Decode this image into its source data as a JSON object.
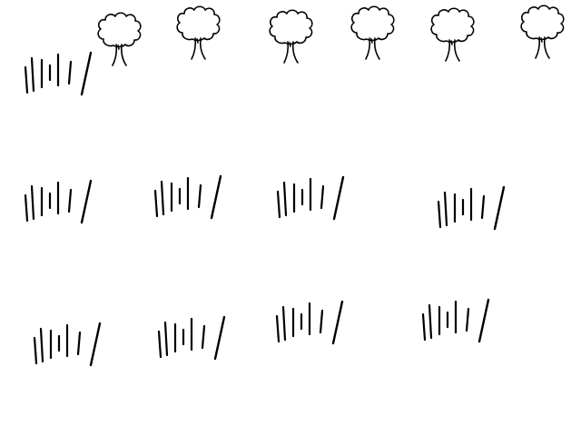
{
  "scene": {
    "background": "#ffffff",
    "ink_color": "#000000",
    "trees": [
      {
        "icon": "tree-icon"
      },
      {
        "icon": "tree-icon"
      },
      {
        "icon": "tree-icon"
      },
      {
        "icon": "tree-icon"
      },
      {
        "icon": "tree-icon"
      },
      {
        "icon": "tree-icon"
      }
    ],
    "grass_tufts": [
      {
        "icon": "grass-tuft-icon"
      },
      {
        "icon": "grass-tuft-icon"
      },
      {
        "icon": "grass-tuft-icon"
      },
      {
        "icon": "grass-tuft-icon"
      },
      {
        "icon": "grass-tuft-icon"
      },
      {
        "icon": "grass-tuft-icon"
      },
      {
        "icon": "grass-tuft-icon"
      },
      {
        "icon": "grass-tuft-icon"
      },
      {
        "icon": "grass-tuft-icon"
      },
      {
        "icon": "grass-tuft-icon"
      }
    ]
  }
}
